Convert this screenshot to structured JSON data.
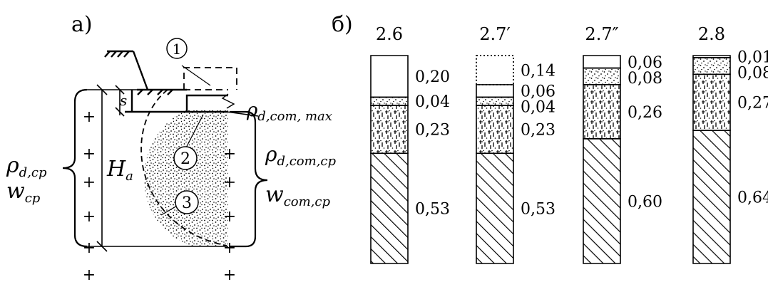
{
  "panel_a": {
    "label": "а)",
    "callouts": [
      "1",
      "2",
      "3"
    ],
    "s_label": "s",
    "rho_max": {
      "sym": "ρ",
      "sub": "d,com, max"
    },
    "rho_cp_left": {
      "sym": "ρ",
      "sub": "d,cp"
    },
    "w_cp_left": {
      "sym": "w",
      "sub": "cp"
    },
    "h_label": {
      "sym": "H",
      "sub": "a"
    },
    "rho_com_cp": {
      "sym": "ρ",
      "sub": "d,com,cp"
    },
    "w_com_cp": {
      "sym": "w",
      "sub": "com,cp"
    },
    "plus": "+"
  },
  "panel_b": {
    "label": "б)",
    "columns": [
      {
        "title": "2.6",
        "layers": [
          {
            "type": "blank",
            "value": "0,20"
          },
          {
            "type": "dots",
            "value": "0,04"
          },
          {
            "type": "dash",
            "value": "0,23"
          },
          {
            "type": "hatch",
            "value": "0,53"
          }
        ]
      },
      {
        "title": "2.7′",
        "layers": [
          {
            "type": "blank-dotted",
            "value": "0,14"
          },
          {
            "type": "blank",
            "value": "0,06"
          },
          {
            "type": "dots",
            "value": "0,04"
          },
          {
            "type": "dash",
            "value": "0,23"
          },
          {
            "type": "hatch",
            "value": "0,53"
          }
        ]
      },
      {
        "title": "2.7″",
        "layers": [
          {
            "type": "blank",
            "value": "0,06"
          },
          {
            "type": "dots",
            "value": "0,08"
          },
          {
            "type": "dash",
            "value": "0,26"
          },
          {
            "type": "hatch",
            "value": "0,60"
          }
        ]
      },
      {
        "title": "2.8",
        "layers": [
          {
            "type": "blank",
            "value": "0,01"
          },
          {
            "type": "dots",
            "value": "0,08"
          },
          {
            "type": "dash",
            "value": "0,27"
          },
          {
            "type": "hatch",
            "value": "0,64"
          }
        ]
      }
    ]
  }
}
